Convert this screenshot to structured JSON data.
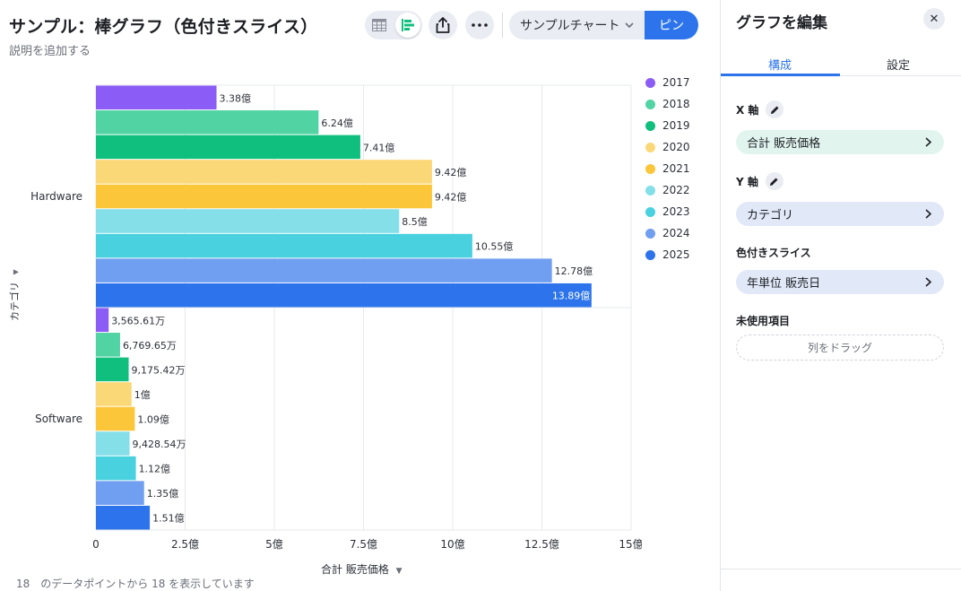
{
  "header": {
    "title": "サンプル：棒グラフ（色付きスライス）",
    "description_placeholder": "説明を追加する",
    "sample_chart_label": "サンプルチャート",
    "pin_label": "ピン"
  },
  "icons": {
    "table": "table-view-icon",
    "chart": "bar-chart-icon",
    "share": "share-icon",
    "more": "more-icon",
    "chevron": "chevron-down-icon",
    "close": "close-icon",
    "edit": "pencil-icon",
    "chevron_right": "chevron-right-icon",
    "dropdown": "caret-down-icon"
  },
  "colors": {
    "accent": "#2d74ec",
    "s2017": "#8b5cf6",
    "s2018": "#52d3a4",
    "s2019": "#10bf7e",
    "s2020": "#fbd877",
    "s2021": "#fbc63a",
    "s2022": "#84dfe9",
    "s2023": "#49d1e0",
    "s2024": "#709ef0",
    "s2025": "#2d74ec"
  },
  "chart_data": {
    "type": "bar",
    "orientation": "horizontal",
    "xlabel": "合計 販売価格",
    "ylabel": "カテゴリ",
    "xlim": [
      0,
      15
    ],
    "x_unit": "億",
    "x_ticks": [
      "0",
      "2.5億",
      "5億",
      "7.5億",
      "10億",
      "12.5億",
      "15億"
    ],
    "categories": [
      "Hardware",
      "Software"
    ],
    "legend_position": "right",
    "grid": true,
    "series": [
      {
        "name": "2017",
        "color": "#8b5cf6",
        "values": [
          3.38,
          0.356561
        ],
        "labels": [
          "3.38億",
          "3,565.61万"
        ]
      },
      {
        "name": "2018",
        "color": "#52d3a4",
        "values": [
          6.24,
          0.676965
        ],
        "labels": [
          "6.24億",
          "6,769.65万"
        ]
      },
      {
        "name": "2019",
        "color": "#10bf7e",
        "values": [
          7.41,
          0.917542
        ],
        "labels": [
          "7.41億",
          "9,175.42万"
        ]
      },
      {
        "name": "2020",
        "color": "#fbd877",
        "values": [
          9.42,
          1.0
        ],
        "labels": [
          "9.42億",
          "1億"
        ]
      },
      {
        "name": "2021",
        "color": "#fbc63a",
        "values": [
          9.42,
          1.09
        ],
        "labels": [
          "9.42億",
          "1.09億"
        ]
      },
      {
        "name": "2022",
        "color": "#84dfe9",
        "values": [
          8.5,
          0.942854
        ],
        "labels": [
          "8.5億",
          "9,428.54万"
        ]
      },
      {
        "name": "2023",
        "color": "#49d1e0",
        "values": [
          10.55,
          1.12
        ],
        "labels": [
          "10.55億",
          "1.12億"
        ]
      },
      {
        "name": "2024",
        "color": "#709ef0",
        "values": [
          12.78,
          1.35
        ],
        "labels": [
          "12.78億",
          "1.35億"
        ]
      },
      {
        "name": "2025",
        "color": "#2d74ec",
        "values": [
          13.89,
          1.51
        ],
        "labels": [
          "13.89億",
          "1.51億"
        ]
      }
    ]
  },
  "footer": {
    "text": "18　のデータポイントから 18 を表示しています"
  },
  "panel": {
    "title": "グラフを編集",
    "tabs": [
      "構成",
      "設定"
    ],
    "x_axis_label": "X 軸",
    "x_axis_value": "合計 販売価格",
    "y_axis_label": "Y 軸",
    "y_axis_value": "カテゴリ",
    "slice_label": "色付きスライス",
    "slice_value": "年単位 販売日",
    "unused_label": "未使用項目",
    "drop_hint": "列をドラッグ"
  }
}
